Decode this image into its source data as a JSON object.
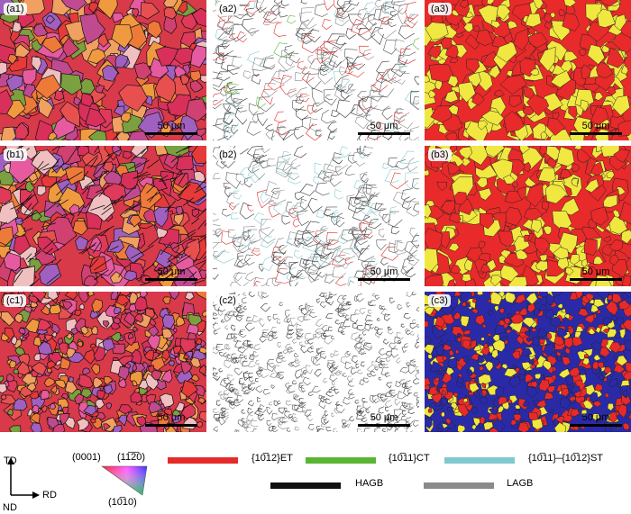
{
  "panels": [
    {
      "id": "a1",
      "label": "(a1)",
      "scale": "50 μm",
      "type": "ipf",
      "seed": 1
    },
    {
      "id": "a2",
      "label": "(a2)",
      "scale": "50 μm",
      "type": "boundary",
      "seed": 2
    },
    {
      "id": "a3",
      "label": "(a3)",
      "scale": "50 μm",
      "type": "phase2",
      "seed": 3
    },
    {
      "id": "b1",
      "label": "(b1)",
      "scale": "50 μm",
      "type": "ipf",
      "seed": 4
    },
    {
      "id": "b2",
      "label": "(b2)",
      "scale": "50 μm",
      "type": "boundary",
      "seed": 5
    },
    {
      "id": "b3",
      "label": "(b3)",
      "scale": "50 μm",
      "type": "phase2",
      "seed": 6
    },
    {
      "id": "c1",
      "label": "(c1)",
      "scale": "50 μm",
      "type": "ipf",
      "seed": 7
    },
    {
      "id": "c2",
      "label": "(c2)",
      "scale": "50 μm",
      "type": "boundary",
      "seed": 8
    },
    {
      "id": "c3",
      "label": "(c3)",
      "scale": "50 μm",
      "type": "phase3",
      "seed": 9
    }
  ],
  "axes": {
    "td": "TD",
    "rd": "RD",
    "nd": "ND"
  },
  "ipf_key": {
    "top_left": "(0001)",
    "top_right": "(11̅2̅0)",
    "bottom": "(10̅10)"
  },
  "legend": {
    "et": {
      "label": "{10̅12}ET",
      "color": "#e52a2a"
    },
    "ct": {
      "label": "{10̅11}CT",
      "color": "#5bb535"
    },
    "st": {
      "label": "{10̅11}–{10̅12}ST",
      "color": "#7fc9cf"
    },
    "hagb": {
      "label": "HAGB",
      "color": "#111111"
    },
    "lagb": {
      "label": "LAGB",
      "color": "#8a8a8a"
    }
  }
}
